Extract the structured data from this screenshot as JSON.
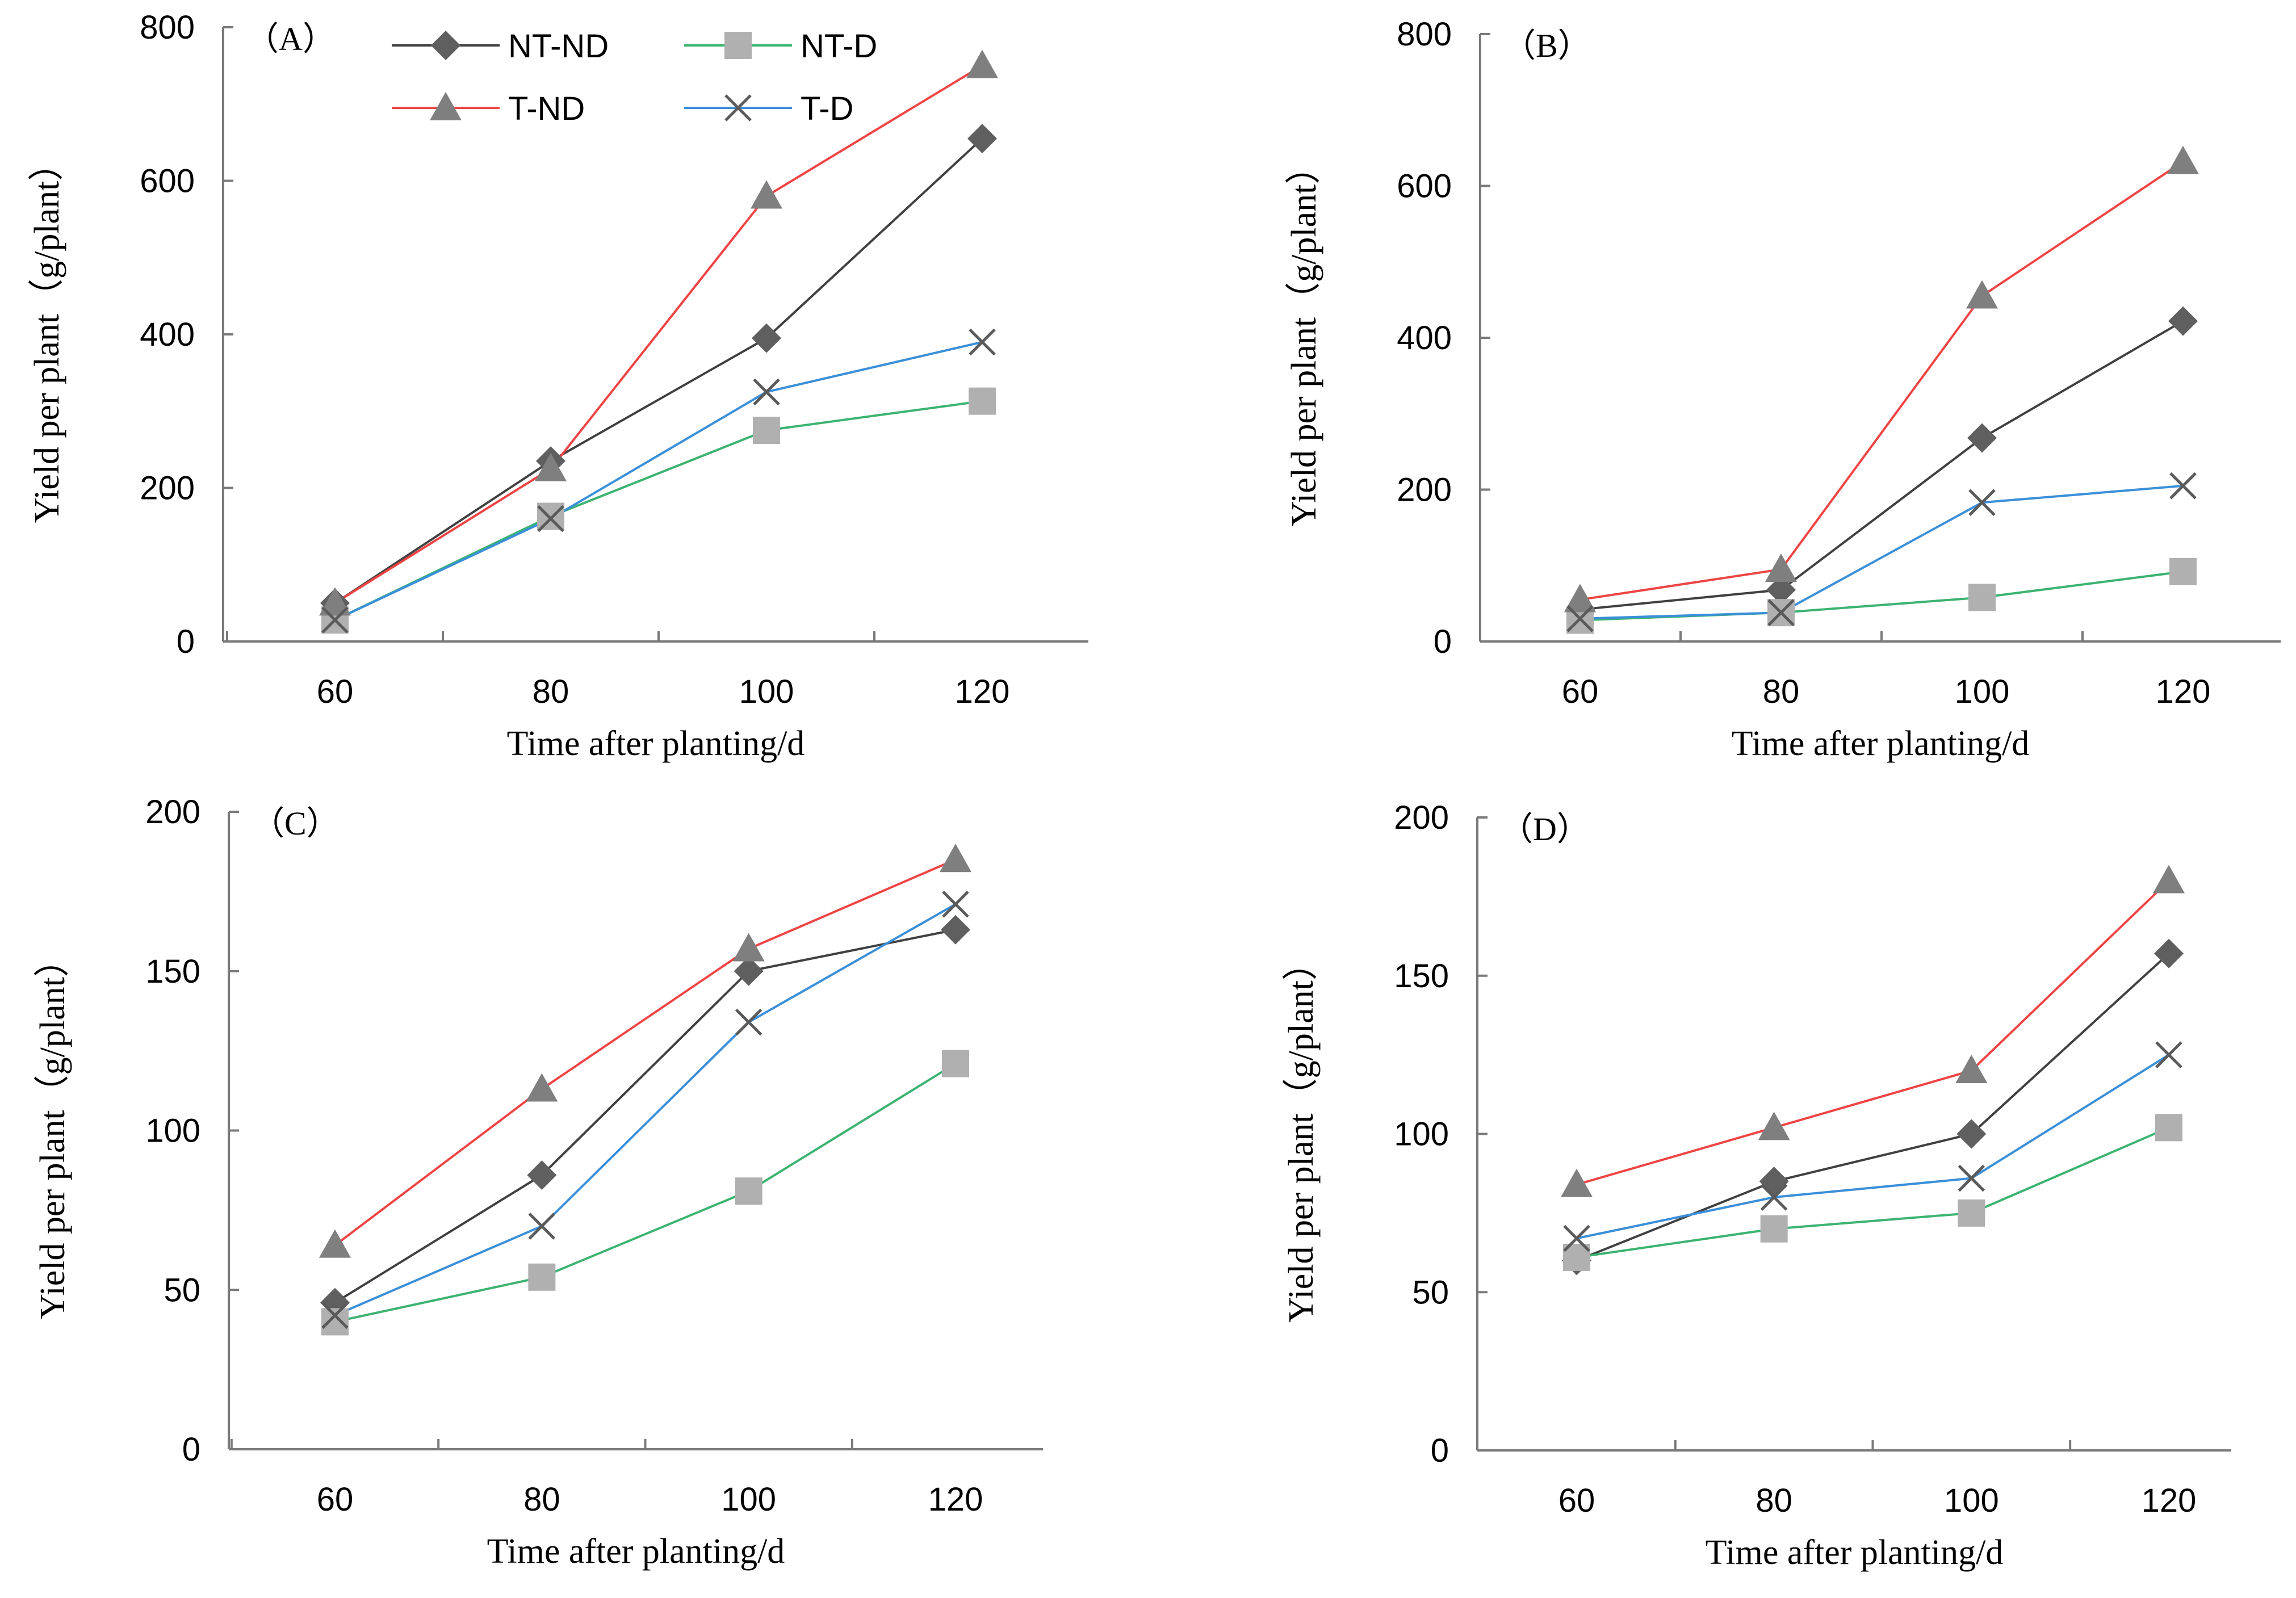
{
  "series_styles": {
    "NT-ND": {
      "color": "#404040",
      "marker_color": "#5f5f5f",
      "marker": "diamond"
    },
    "NT-D": {
      "color": "#3cb371",
      "marker_color": "#b0b0b0",
      "marker": "square"
    },
    "T-ND": {
      "color": "#ee4444",
      "marker_color": "#7f7f7f",
      "marker": "triangle"
    },
    "T-D": {
      "color": "#3a8fd9",
      "marker_color": "#5a5a5a",
      "marker": "x"
    }
  },
  "legend": [
    "NT-ND",
    "NT-D",
    "T-ND",
    "T-D"
  ],
  "chart_data": [
    {
      "type": "line",
      "panel": "（A）",
      "xlabel": "Time after planting/d",
      "ylabel": "Yield per plant（g/plant）",
      "x": [
        60,
        80,
        100,
        120
      ],
      "xticks": [
        "60",
        "80",
        "100",
        "120"
      ],
      "ylim": [
        0,
        800
      ],
      "yticks": [
        "0",
        "200",
        "400",
        "600",
        "800"
      ],
      "series": [
        {
          "name": "NT-ND",
          "values": [
            50,
            235,
            395,
            655
          ]
        },
        {
          "name": "NT-D",
          "values": [
            28,
            163,
            275,
            313
          ]
        },
        {
          "name": "T-ND",
          "values": [
            50,
            225,
            580,
            750
          ]
        },
        {
          "name": "T-D",
          "values": [
            28,
            160,
            325,
            390
          ]
        }
      ]
    },
    {
      "type": "line",
      "panel": "（B）",
      "xlabel": "Time after planting/d",
      "ylabel": "Yield per plant（g/plant）",
      "x": [
        60,
        80,
        100,
        120
      ],
      "xticks": [
        "60",
        "80",
        "100",
        "120"
      ],
      "ylim": [
        0,
        800
      ],
      "yticks": [
        "0",
        "200",
        "400",
        "600",
        "800"
      ],
      "series": [
        {
          "name": "NT-ND",
          "values": [
            42,
            68,
            268,
            422
          ]
        },
        {
          "name": "NT-D",
          "values": [
            28,
            38,
            58,
            92
          ]
        },
        {
          "name": "T-ND",
          "values": [
            55,
            95,
            455,
            632
          ]
        },
        {
          "name": "T-D",
          "values": [
            30,
            38,
            183,
            205
          ]
        }
      ]
    },
    {
      "type": "line",
      "panel": "（C）",
      "xlabel": "Time after planting/d",
      "ylabel": "Yield per plant（g/plant）",
      "x": [
        60,
        80,
        100,
        120
      ],
      "xticks": [
        "60",
        "80",
        "100",
        "120"
      ],
      "ylim": [
        0,
        200
      ],
      "yticks": [
        "0",
        "50",
        "100",
        "150",
        "200"
      ],
      "series": [
        {
          "name": "NT-ND",
          "values": [
            46,
            86,
            150,
            163
          ]
        },
        {
          "name": "NT-D",
          "values": [
            40,
            54,
            81,
            121
          ]
        },
        {
          "name": "T-ND",
          "values": [
            64,
            113,
            157,
            185
          ]
        },
        {
          "name": "T-D",
          "values": [
            42,
            70,
            134,
            171
          ]
        }
      ]
    },
    {
      "type": "line",
      "panel": "（D）",
      "xlabel": "Time after planting/d",
      "ylabel": "Yield per plant（g/plant）",
      "x": [
        60,
        80,
        100,
        120
      ],
      "xticks": [
        "60",
        "80",
        "100",
        "120"
      ],
      "ylim": [
        0,
        200
      ],
      "yticks": [
        "0",
        "50",
        "100",
        "150",
        "200"
      ],
      "series": [
        {
          "name": "NT-ND",
          "values": [
            60,
            85,
            100,
            157
          ]
        },
        {
          "name": "NT-D",
          "values": [
            61,
            70,
            75,
            102
          ]
        },
        {
          "name": "T-ND",
          "values": [
            84,
            102,
            120,
            180
          ]
        },
        {
          "name": "T-D",
          "values": [
            67,
            80,
            86,
            125
          ]
        }
      ]
    }
  ]
}
